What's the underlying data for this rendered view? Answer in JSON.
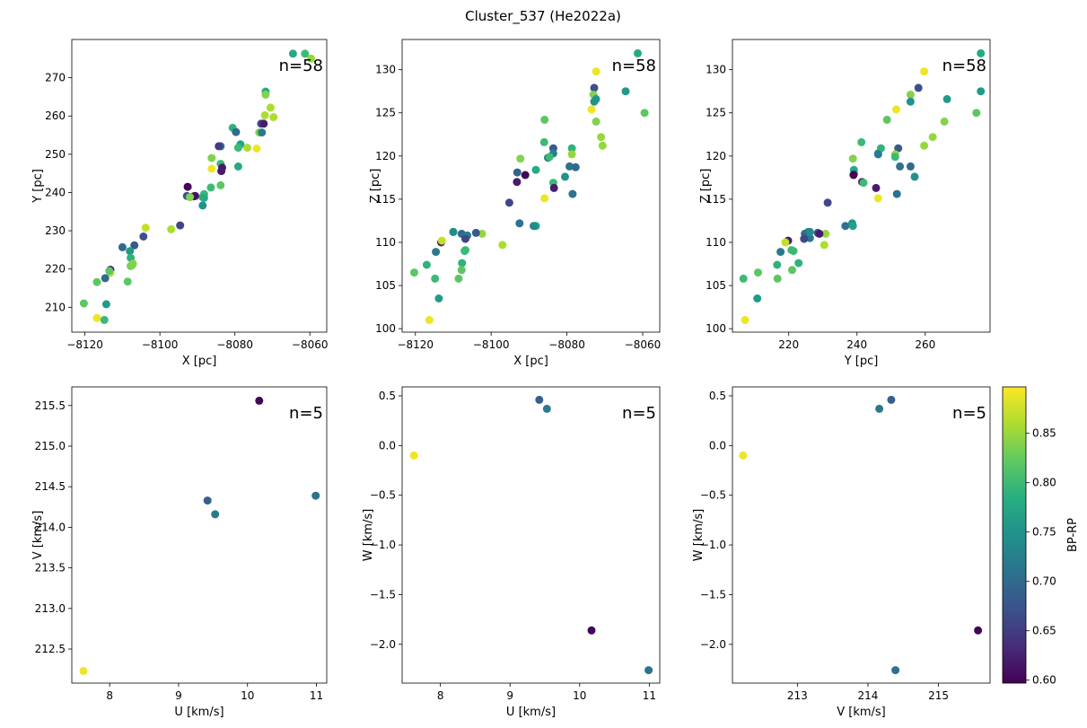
{
  "figure": {
    "title": "Cluster_537 (He2022a)"
  },
  "colorbar": {
    "label": "BP-RP",
    "vmin": 0.597,
    "vmax": 0.897,
    "ticks": [
      "0.60",
      "0.65",
      "0.70",
      "0.75",
      "0.80",
      "0.85"
    ],
    "colormap": "viridis"
  },
  "chart_data": [
    {
      "type": "scatter",
      "xlabel": "X [pc]",
      "ylabel": "Y [pc]",
      "annotation": "n=58",
      "xlim": [
        -8123.5,
        -8055.5
      ],
      "ylim": [
        203.5,
        280
      ],
      "xticks": [
        -8120,
        -8100,
        -8080,
        -8060
      ],
      "yticks": [
        210,
        220,
        230,
        240,
        250,
        260,
        270
      ],
      "points": [
        [
          -8064.5,
          276.3,
          0.78
        ],
        [
          -8061.3,
          276.3,
          0.8
        ],
        [
          -8059.7,
          275.0,
          0.85
        ],
        [
          -8071.8,
          266.4,
          0.78
        ],
        [
          -8071.8,
          265.6,
          0.84
        ],
        [
          -8070.5,
          262.2,
          0.86
        ],
        [
          -8072.0,
          260.2,
          0.86
        ],
        [
          -8069.7,
          259.7,
          0.86
        ],
        [
          -8073.0,
          258.0,
          0.67
        ],
        [
          -8080.6,
          256.9,
          0.79
        ],
        [
          -8079.7,
          255.8,
          0.7
        ],
        [
          -8073.5,
          255.7,
          0.84
        ],
        [
          -8072.8,
          255.7,
          0.72
        ],
        [
          -8078.5,
          252.6,
          0.77
        ],
        [
          -8079.1,
          251.7,
          0.8
        ],
        [
          -8083.8,
          252.1,
          0.71
        ],
        [
          -8084.3,
          252.1,
          0.65
        ],
        [
          -8074.2,
          251.5,
          0.89
        ],
        [
          -8086.2,
          249.0,
          0.84
        ],
        [
          -8083.8,
          247.5,
          0.8
        ],
        [
          -8083.4,
          246.5,
          0.62
        ],
        [
          -8086.2,
          246.2,
          0.89
        ],
        [
          -8079.1,
          246.8,
          0.78
        ],
        [
          -8083.6,
          245.6,
          0.62
        ],
        [
          -8083.8,
          241.9,
          0.82
        ],
        [
          -8086.4,
          241.3,
          0.8
        ],
        [
          -8088.2,
          239.6,
          0.8
        ],
        [
          -8088.6,
          238.8,
          0.79
        ],
        [
          -8092.6,
          241.5,
          0.6
        ],
        [
          -8092.8,
          239.1,
          0.68
        ],
        [
          -8090.6,
          239.1,
          0.61
        ],
        [
          -8091.0,
          239.0,
          0.61
        ],
        [
          -8092.0,
          238.8,
          0.84
        ],
        [
          -8088.6,
          236.6,
          0.75
        ],
        [
          -8094.6,
          231.4,
          0.66
        ],
        [
          -8097.0,
          230.4,
          0.86
        ],
        [
          -8103.8,
          230.8,
          0.87
        ],
        [
          -8104.4,
          228.5,
          0.67
        ],
        [
          -8106.8,
          226.2,
          0.68
        ],
        [
          -8110.0,
          225.7,
          0.7
        ],
        [
          -8108.0,
          224.7,
          0.76
        ],
        [
          -8107.8,
          222.9,
          0.79
        ],
        [
          -8107.2,
          221.4,
          0.84
        ],
        [
          -8107.8,
          220.8,
          0.83
        ],
        [
          -8113.2,
          219.8,
          0.62
        ],
        [
          -8113.2,
          219.0,
          0.87
        ],
        [
          -8114.6,
          217.6,
          0.7
        ],
        [
          -8108.6,
          216.7,
          0.82
        ],
        [
          -8116.8,
          216.6,
          0.82
        ],
        [
          -8114.3,
          210.8,
          0.76
        ],
        [
          -8120.3,
          211.0,
          0.82
        ],
        [
          -8116.8,
          207.2,
          0.89
        ],
        [
          -8114.8,
          206.7,
          0.8
        ],
        [
          -8113.5,
          219.5,
          0.82
        ],
        [
          -8107.4,
          221.0,
          0.84
        ],
        [
          -8088.2,
          238.6,
          0.78
        ],
        [
          -8072.3,
          258.0,
          0.62
        ],
        [
          -8076.7,
          251.7,
          0.86
        ]
      ]
    },
    {
      "type": "scatter",
      "xlabel": "X [pc]",
      "ylabel": "Z [pc]",
      "annotation": "n=58",
      "xlim": [
        -8123.5,
        -8055.5
      ],
      "ylim": [
        99.6,
        133.5
      ],
      "xticks": [
        -8120,
        -8100,
        -8080,
        -8060
      ],
      "yticks": [
        100,
        105,
        110,
        115,
        120,
        125,
        130
      ],
      "points": [
        [
          -8061.3,
          131.9,
          0.78
        ],
        [
          -8072.3,
          129.8,
          0.89
        ],
        [
          -8072.8,
          127.9,
          0.67
        ],
        [
          -8073.0,
          127.1,
          0.84
        ],
        [
          -8064.5,
          127.5,
          0.76
        ],
        [
          -8072.3,
          126.6,
          0.76
        ],
        [
          -8072.8,
          126.3,
          0.75
        ],
        [
          -8073.5,
          125.4,
          0.89
        ],
        [
          -8059.5,
          125.0,
          0.82
        ],
        [
          -8085.9,
          124.2,
          0.82
        ],
        [
          -8072.3,
          124.0,
          0.84
        ],
        [
          -8071.0,
          122.2,
          0.85
        ],
        [
          -8070.6,
          121.2,
          0.85
        ],
        [
          -8086.0,
          121.6,
          0.8
        ],
        [
          -8083.6,
          120.9,
          0.68
        ],
        [
          -8083.6,
          120.3,
          0.73
        ],
        [
          -8078.7,
          120.9,
          0.79
        ],
        [
          -8078.7,
          120.2,
          0.85
        ],
        [
          -8085.0,
          119.8,
          0.72
        ],
        [
          -8092.3,
          119.7,
          0.84
        ],
        [
          -8084.6,
          119.9,
          0.8
        ],
        [
          -8079.3,
          118.8,
          0.71
        ],
        [
          -8077.7,
          118.7,
          0.7
        ],
        [
          -8088.2,
          118.4,
          0.78
        ],
        [
          -8093.1,
          118.1,
          0.69
        ],
        [
          -8091.0,
          117.8,
          0.6
        ],
        [
          -8080.5,
          117.6,
          0.75
        ],
        [
          -8093.2,
          117.0,
          0.62
        ],
        [
          -8083.6,
          116.9,
          0.8
        ],
        [
          -8083.4,
          116.3,
          0.62
        ],
        [
          -8078.5,
          115.6,
          0.71
        ],
        [
          -8085.9,
          115.1,
          0.89
        ],
        [
          -8095.2,
          114.6,
          0.66
        ],
        [
          -8092.5,
          112.2,
          0.71
        ],
        [
          -8088.5,
          111.9,
          0.75
        ],
        [
          -8088.2,
          111.9,
          0.77
        ],
        [
          -8102.4,
          111.0,
          0.85
        ],
        [
          -8104.0,
          111.1,
          0.68
        ],
        [
          -8110.0,
          111.2,
          0.74
        ],
        [
          -8107.8,
          111.0,
          0.7
        ],
        [
          -8106.3,
          110.8,
          0.72
        ],
        [
          -8113.2,
          110.0,
          0.62
        ],
        [
          -8113.0,
          110.2,
          0.87
        ],
        [
          -8106.8,
          110.4,
          0.66
        ],
        [
          -8097.0,
          109.7,
          0.86
        ],
        [
          -8106.8,
          109.1,
          0.8
        ],
        [
          -8114.6,
          108.9,
          0.72
        ],
        [
          -8117.0,
          107.4,
          0.79
        ],
        [
          -8107.7,
          107.6,
          0.79
        ],
        [
          -8107.8,
          106.8,
          0.82
        ],
        [
          -8120.3,
          106.5,
          0.82
        ],
        [
          -8114.8,
          105.8,
          0.8
        ],
        [
          -8108.6,
          105.8,
          0.82
        ],
        [
          -8113.8,
          103.5,
          0.76
        ],
        [
          -8116.3,
          101.0,
          0.89
        ],
        [
          -8107.0,
          109.0,
          0.8
        ],
        [
          -8110.0,
          111.2,
          0.74
        ],
        [
          -8088.8,
          111.9,
          0.74
        ]
      ]
    },
    {
      "type": "scatter",
      "xlabel": "Y [pc]",
      "ylabel": "Z [pc]",
      "annotation": "n=58",
      "xlim": [
        203.5,
        279
      ],
      "ylim": [
        99.6,
        133.5
      ],
      "xticks": [
        220,
        240,
        260
      ],
      "yticks": [
        100,
        105,
        110,
        115,
        120,
        125,
        130
      ],
      "points": [
        [
          276.3,
          131.9,
          0.78
        ],
        [
          259.7,
          129.8,
          0.89
        ],
        [
          258.0,
          127.9,
          0.67
        ],
        [
          255.7,
          127.1,
          0.84
        ],
        [
          276.3,
          127.5,
          0.76
        ],
        [
          266.4,
          126.6,
          0.76
        ],
        [
          255.7,
          126.3,
          0.75
        ],
        [
          251.5,
          125.4,
          0.89
        ],
        [
          275.0,
          125.0,
          0.82
        ],
        [
          248.8,
          124.2,
          0.82
        ],
        [
          265.6,
          124.0,
          0.84
        ],
        [
          262.2,
          122.2,
          0.85
        ],
        [
          259.7,
          121.2,
          0.85
        ],
        [
          241.3,
          121.6,
          0.8
        ],
        [
          252.1,
          120.9,
          0.68
        ],
        [
          246.2,
          120.3,
          0.73
        ],
        [
          247.0,
          120.9,
          0.79
        ],
        [
          251.2,
          120.2,
          0.85
        ],
        [
          246.2,
          120.2,
          0.72
        ],
        [
          238.8,
          119.7,
          0.84
        ],
        [
          251.2,
          119.9,
          0.8
        ],
        [
          252.6,
          118.8,
          0.71
        ],
        [
          255.7,
          118.8,
          0.7
        ],
        [
          239.1,
          118.4,
          0.78
        ],
        [
          239.1,
          117.9,
          0.69
        ],
        [
          239.0,
          117.8,
          0.6
        ],
        [
          256.9,
          117.6,
          0.75
        ],
        [
          241.5,
          117.0,
          0.62
        ],
        [
          241.9,
          116.9,
          0.8
        ],
        [
          245.6,
          116.3,
          0.62
        ],
        [
          251.7,
          115.6,
          0.71
        ],
        [
          246.2,
          115.1,
          0.89
        ],
        [
          231.4,
          114.6,
          0.66
        ],
        [
          236.6,
          111.9,
          0.71
        ],
        [
          238.6,
          112.2,
          0.75
        ],
        [
          238.8,
          111.9,
          0.77
        ],
        [
          230.8,
          111.0,
          0.85
        ],
        [
          228.5,
          111.1,
          0.68
        ],
        [
          225.7,
          111.2,
          0.74
        ],
        [
          224.7,
          111.0,
          0.7
        ],
        [
          226.2,
          110.5,
          0.72
        ],
        [
          219.8,
          110.2,
          0.62
        ],
        [
          219.0,
          110.0,
          0.87
        ],
        [
          224.5,
          110.4,
          0.66
        ],
        [
          230.4,
          109.7,
          0.86
        ],
        [
          220.8,
          109.1,
          0.8
        ],
        [
          217.6,
          108.9,
          0.72
        ],
        [
          216.6,
          107.4,
          0.79
        ],
        [
          222.9,
          107.6,
          0.79
        ],
        [
          221.0,
          106.8,
          0.82
        ],
        [
          211.0,
          106.5,
          0.82
        ],
        [
          206.7,
          105.8,
          0.8
        ],
        [
          216.7,
          105.8,
          0.82
        ],
        [
          210.8,
          103.5,
          0.76
        ],
        [
          207.2,
          101.0,
          0.89
        ],
        [
          221.4,
          109.0,
          0.8
        ],
        [
          226.2,
          111.2,
          0.74
        ],
        [
          229.0,
          111.0,
          0.62
        ]
      ]
    },
    {
      "type": "scatter",
      "xlabel": "U [km/s]",
      "ylabel": "V [km/s]",
      "annotation": "n=5",
      "xlim": [
        7.45,
        11.15
      ],
      "ylim": [
        212.08,
        215.73
      ],
      "xticks": [
        8,
        9,
        10,
        11
      ],
      "yticks": [
        212.5,
        213.0,
        213.5,
        214.0,
        214.5,
        215.0,
        215.5
      ],
      "ytick_labels": [
        "212.5",
        "213.0",
        "213.5",
        "214.0",
        "214.5",
        "215.0",
        "215.5"
      ],
      "points": [
        [
          10.17,
          215.56,
          0.6
        ],
        [
          9.42,
          214.33,
          0.69
        ],
        [
          9.53,
          214.16,
          0.72
        ],
        [
          10.99,
          214.39,
          0.71
        ],
        [
          7.62,
          212.23,
          0.89
        ]
      ]
    },
    {
      "type": "scatter",
      "xlabel": "U [km/s]",
      "ylabel": "W [km/s]",
      "annotation": "n=5",
      "xlim": [
        7.45,
        11.15
      ],
      "ylim": [
        -2.39,
        0.59
      ],
      "xticks": [
        8,
        9,
        10,
        11
      ],
      "yticks": [
        -2.0,
        -1.5,
        -1.0,
        -0.5,
        0.0,
        0.5
      ],
      "ytick_labels": [
        "−2.0",
        "−1.5",
        "−1.0",
        "−0.5",
        "0.0",
        "0.5"
      ],
      "points": [
        [
          9.42,
          0.46,
          0.69
        ],
        [
          9.53,
          0.37,
          0.72
        ],
        [
          7.62,
          -0.1,
          0.89
        ],
        [
          10.17,
          -1.86,
          0.6
        ],
        [
          10.99,
          -2.26,
          0.71
        ]
      ]
    },
    {
      "type": "scatter",
      "xlabel": "V [km/s]",
      "ylabel": "W [km/s]",
      "annotation": "n=5",
      "xlim": [
        212.08,
        215.73
      ],
      "ylim": [
        -2.39,
        0.59
      ],
      "xticks": [
        213,
        214,
        215
      ],
      "yticks": [
        -2.0,
        -1.5,
        -1.0,
        -0.5,
        0.0,
        0.5
      ],
      "ytick_labels": [
        "−2.0",
        "−1.5",
        "−1.0",
        "−0.5",
        "0.0",
        "0.5"
      ],
      "points": [
        [
          214.33,
          0.46,
          0.69
        ],
        [
          214.16,
          0.37,
          0.72
        ],
        [
          212.23,
          -0.1,
          0.89
        ],
        [
          215.56,
          -1.86,
          0.6
        ],
        [
          214.39,
          -2.26,
          0.71
        ]
      ]
    }
  ]
}
